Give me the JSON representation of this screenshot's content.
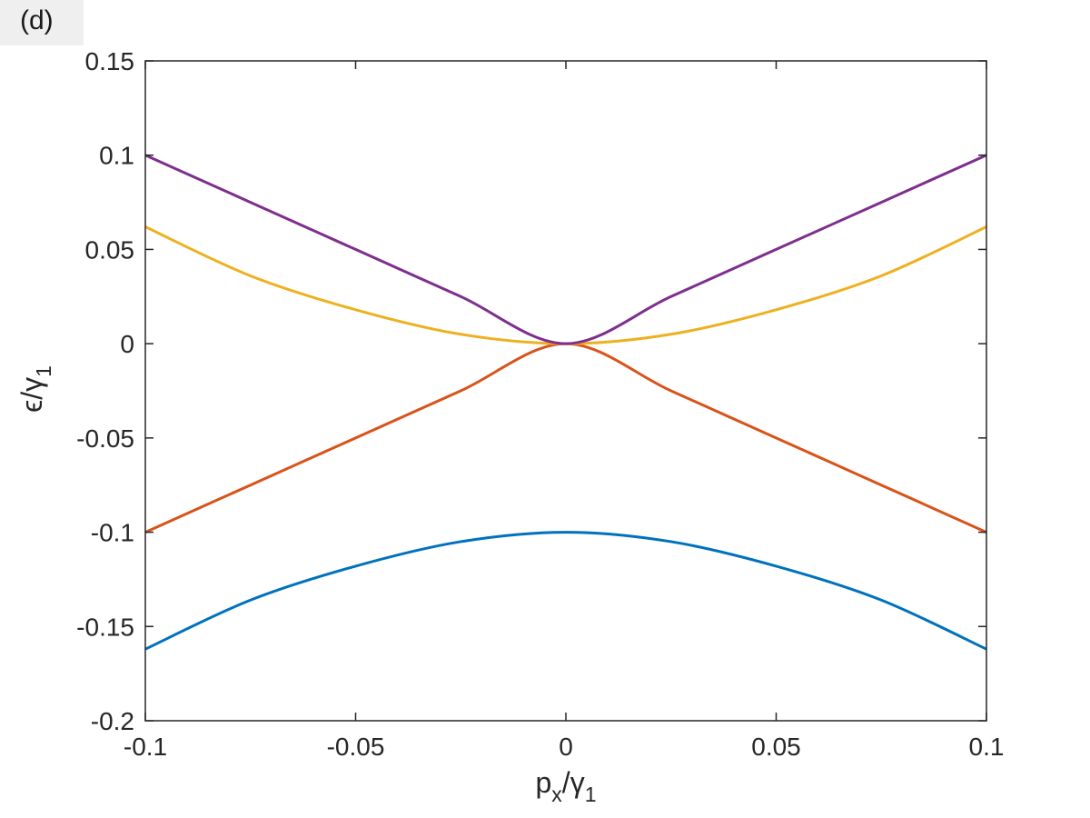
{
  "panel_label": "(d)",
  "chart_data": {
    "type": "line",
    "xlabel": {
      "main": "p",
      "sub1": "x",
      "mid": "/γ",
      "sub2": "1"
    },
    "ylabel": {
      "main": "ϵ/γ",
      "sub": "1"
    },
    "xlim": [
      -0.1,
      0.1
    ],
    "ylim": [
      -0.2,
      0.15
    ],
    "x_ticks": [
      -0.1,
      -0.05,
      0,
      0.05,
      0.1
    ],
    "x_tick_labels": [
      "-0.1",
      "-0.05",
      "0",
      "0.05",
      "0.1"
    ],
    "y_ticks": [
      -0.2,
      -0.15,
      -0.1,
      -0.05,
      0,
      0.05,
      0.1,
      0.15
    ],
    "y_tick_labels": [
      "-0.2",
      "-0.15",
      "-0.1",
      "-0.05",
      "0",
      "0.05",
      "0.1",
      "0.15"
    ],
    "grid": false,
    "x": [
      -0.1,
      -0.075,
      -0.05,
      -0.025,
      0,
      0.025,
      0.05,
      0.075,
      0.1
    ],
    "series": [
      {
        "color": "#0072BD",
        "values": [
          -0.162,
          -0.136,
          -0.118,
          -0.105,
          -0.1,
          -0.105,
          -0.118,
          -0.136,
          -0.162
        ]
      },
      {
        "color": "#D95319",
        "values": [
          -0.1,
          -0.075,
          -0.05,
          -0.025,
          0.0,
          -0.025,
          -0.05,
          -0.075,
          -0.1
        ]
      },
      {
        "color": "#EDB120",
        "values": [
          0.062,
          0.036,
          0.018,
          0.005,
          0.0,
          0.005,
          0.018,
          0.036,
          0.062
        ]
      },
      {
        "color": "#7E2F8E",
        "values": [
          0.1,
          0.075,
          0.05,
          0.025,
          0.0,
          0.025,
          0.05,
          0.075,
          0.1
        ]
      }
    ]
  }
}
